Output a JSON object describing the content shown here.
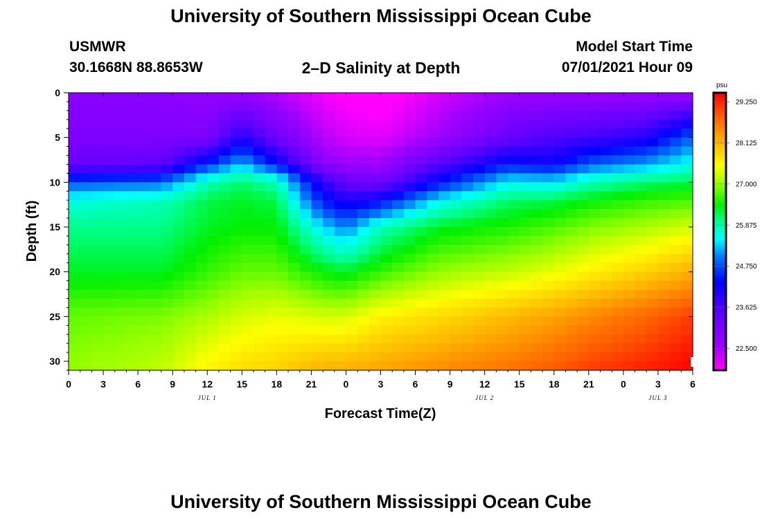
{
  "header": {
    "title_top": "University of Southern Mississippi Ocean Cube",
    "station_name": "USMWR",
    "station_coords": "30.1668N  88.8653W",
    "subtitle": "2–D Salinity at Depth",
    "model_start_label": "Model Start Time",
    "model_start_value": "07/01/2021 Hour 09",
    "title_bottom": "University of Southern Mississippi Ocean Cube"
  },
  "chart_data": {
    "type": "heatmap",
    "title": "2–D Salinity at Depth",
    "xlabel": "Forecast Time(Z)",
    "ylabel": "Depth (ft)",
    "x_hours_range": [
      0,
      54
    ],
    "x_tick_labels": [
      "0",
      "3",
      "6",
      "9",
      "12",
      "15",
      "18",
      "21",
      "0",
      "3",
      "6",
      "9",
      "12",
      "15",
      "18",
      "21",
      "0",
      "3",
      "6"
    ],
    "date_labels": [
      {
        "text": "JUL 1",
        "hour": 12
      },
      {
        "text": "JUL 2",
        "hour": 36
      },
      {
        "text": "JUL 3",
        "hour": 51
      }
    ],
    "y_range": [
      0,
      31
    ],
    "y_ticks": [
      0,
      5,
      10,
      15,
      20,
      25,
      30
    ],
    "colorbar": {
      "units": "psu",
      "min": 21.9,
      "max": 29.5,
      "tick_values": [
        22.5,
        23.625,
        24.75,
        25.875,
        27.0,
        28.125,
        29.25
      ],
      "tick_labels": [
        "22.500",
        "23.625",
        "24.750",
        "25.875",
        "27.000",
        "28.125",
        "29.250"
      ]
    },
    "profiles": {
      "depths_ft": [
        0,
        5,
        8,
        9,
        10,
        12,
        15,
        20,
        25,
        31
      ],
      "columns": [
        {
          "hour": 0,
          "salinity": [
            22.8,
            23.0,
            23.3,
            24.0,
            24.8,
            25.6,
            26.0,
            26.3,
            26.8,
            27.0
          ]
        },
        {
          "hour": 8,
          "salinity": [
            22.8,
            23.0,
            23.4,
            24.1,
            24.9,
            25.8,
            26.0,
            26.3,
            26.9,
            27.2
          ]
        },
        {
          "hour": 12,
          "salinity": [
            22.7,
            23.0,
            24.5,
            25.3,
            25.8,
            26.2,
            26.3,
            26.6,
            27.1,
            27.6
          ]
        },
        {
          "hour": 15,
          "salinity": [
            22.6,
            24.0,
            25.3,
            25.7,
            26.1,
            26.3,
            26.4,
            26.8,
            27.3,
            27.8
          ]
        },
        {
          "hour": 18,
          "salinity": [
            22.4,
            23.2,
            24.3,
            25.3,
            25.8,
            26.2,
            26.4,
            26.8,
            27.4,
            27.9
          ]
        },
        {
          "hour": 22,
          "salinity": [
            22.0,
            22.4,
            22.8,
            23.4,
            23.9,
            24.4,
            25.4,
            26.4,
            27.3,
            28.2
          ]
        },
        {
          "hour": 24,
          "salinity": [
            21.8,
            22.2,
            22.6,
            23.0,
            23.3,
            24.0,
            25.0,
            26.3,
            27.3,
            28.2
          ]
        },
        {
          "hour": 27,
          "salinity": [
            21.7,
            22.1,
            22.6,
            22.9,
            23.2,
            24.3,
            25.8,
            26.6,
            27.6,
            28.3
          ]
        },
        {
          "hour": 32,
          "salinity": [
            22.2,
            22.6,
            23.5,
            24.0,
            24.3,
            25.5,
            26.3,
            27.0,
            27.8,
            28.5
          ]
        },
        {
          "hour": 38,
          "salinity": [
            22.6,
            23.3,
            24.4,
            25.0,
            25.5,
            26.1,
            26.5,
            27.2,
            28.1,
            28.7
          ]
        },
        {
          "hour": 42,
          "salinity": [
            22.6,
            23.6,
            24.2,
            24.9,
            25.4,
            26.2,
            26.7,
            27.4,
            28.3,
            28.9
          ]
        },
        {
          "hour": 45,
          "salinity": [
            22.6,
            23.7,
            24.8,
            25.4,
            25.8,
            26.4,
            26.9,
            27.6,
            28.5,
            29.1
          ]
        },
        {
          "hour": 50,
          "salinity": [
            22.6,
            24.0,
            25.2,
            25.6,
            26.1,
            26.6,
            27.1,
            27.9,
            28.8,
            29.3
          ]
        },
        {
          "hour": 54,
          "salinity": [
            22.6,
            24.9,
            25.6,
            25.9,
            26.2,
            26.7,
            27.3,
            28.2,
            29.1,
            29.5
          ]
        }
      ]
    }
  }
}
